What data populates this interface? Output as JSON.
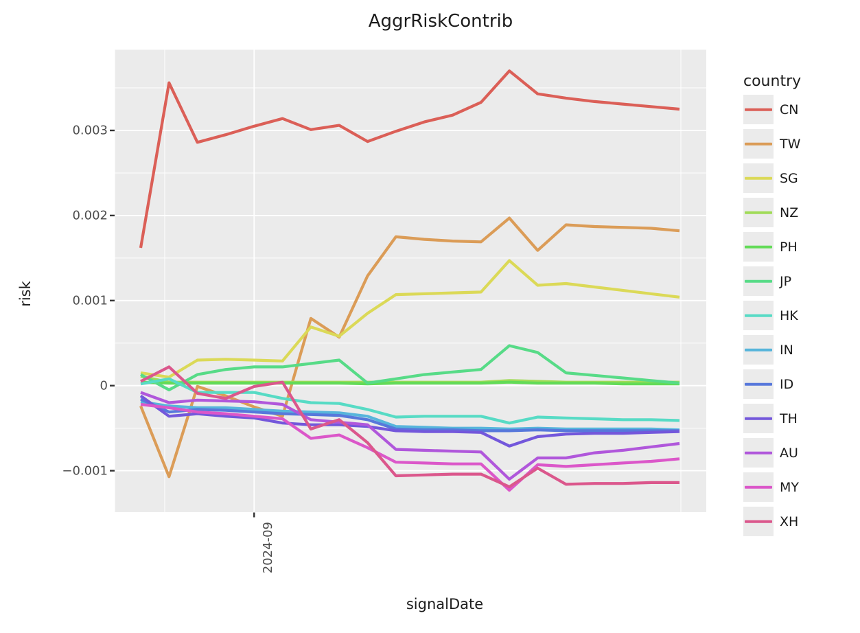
{
  "title": "AggrRiskContrib",
  "axes": {
    "x": {
      "label": "signalDate",
      "tick_labels": [
        "2024-09"
      ]
    },
    "y": {
      "label": "risk",
      "tick_labels": [
        "0.003",
        "0.002",
        "0.001",
        "0",
        "−0.001"
      ]
    }
  },
  "legend": {
    "title": "country"
  },
  "chart_data": {
    "type": "line",
    "title": "AggrRiskContrib",
    "xlabel": "signalDate",
    "ylabel": "risk",
    "background": "#ebebeb",
    "grid": true,
    "legend_position": "right",
    "legend_title": "country",
    "n_points": 20,
    "x": [
      0,
      1,
      2,
      3,
      4,
      5,
      6,
      7,
      8,
      9,
      10,
      11,
      12,
      13,
      14,
      15,
      16,
      17,
      18,
      19
    ],
    "x_visible_tick": {
      "label": "2024-09",
      "index": 4
    },
    "ylim": [
      -0.00149,
      0.00395
    ],
    "y_major_ticks": [
      0.003,
      0.002,
      0.001,
      0,
      -0.001
    ],
    "y_minor_ticks": [
      0.0035,
      0.0025,
      0.0015,
      0.0005,
      -0.0005
    ],
    "series": [
      {
        "name": "CN",
        "color": "#db5f57",
        "values": [
          0.00162,
          0.00356,
          0.00286,
          0.00295,
          0.00305,
          0.00314,
          0.00301,
          0.00306,
          0.00287,
          0.00299,
          0.0031,
          0.00318,
          0.00333,
          0.0037,
          0.00343,
          0.00338,
          0.00334,
          0.00331,
          0.00328,
          0.00325
        ]
      },
      {
        "name": "TW",
        "color": "#db9c57",
        "values": [
          -0.00024,
          -0.00107,
          -1e-05,
          -0.00012,
          -0.00025,
          -0.00036,
          0.00079,
          0.00057,
          0.00129,
          0.00175,
          0.00172,
          0.0017,
          0.00169,
          0.00197,
          0.00159,
          0.00189,
          0.00187,
          0.00186,
          0.00185,
          0.00182
        ]
      },
      {
        "name": "SG",
        "color": "#dbd957",
        "values": [
          0.00015,
          0.0001,
          0.0003,
          0.00031,
          0.0003,
          0.00029,
          0.00069,
          0.00058,
          0.00085,
          0.00107,
          0.00108,
          0.00109,
          0.0011,
          0.00147,
          0.00118,
          0.0012,
          0.00116,
          0.00112,
          0.00108,
          0.00104
        ]
      },
      {
        "name": "NZ",
        "color": "#a0db57",
        "values": [
          0.00011,
          4e-05,
          4e-05,
          4e-05,
          4e-05,
          4e-05,
          4e-05,
          4e-05,
          4e-05,
          4e-05,
          4e-05,
          4e-05,
          4e-05,
          6e-05,
          5e-05,
          4e-05,
          4e-05,
          4e-05,
          4e-05,
          4e-05
        ]
      },
      {
        "name": "PH",
        "color": "#63db57",
        "values": [
          4e-05,
          3e-05,
          3e-05,
          3e-05,
          3e-05,
          3e-05,
          3e-05,
          3e-05,
          2e-05,
          3e-05,
          3e-05,
          3e-05,
          3e-05,
          4e-05,
          3e-05,
          3e-05,
          3e-05,
          2e-05,
          2e-05,
          2e-05
        ]
      },
      {
        "name": "JP",
        "color": "#57db87",
        "values": [
          0.00013,
          -5e-05,
          0.00013,
          0.00019,
          0.00022,
          0.00022,
          0.00026,
          0.0003,
          3e-05,
          8e-05,
          0.00013,
          0.00016,
          0.00019,
          0.00047,
          0.00039,
          0.00015,
          0.00012,
          9e-05,
          6e-05,
          3e-05
        ]
      },
      {
        "name": "HK",
        "color": "#57dbc5",
        "values": [
          2e-05,
          8e-05,
          -8e-05,
          -8e-05,
          -8e-05,
          -0.00015,
          -0.0002,
          -0.00021,
          -0.00028,
          -0.00037,
          -0.00036,
          -0.00036,
          -0.00036,
          -0.00044,
          -0.00037,
          -0.00038,
          -0.00039,
          -0.0004,
          -0.0004,
          -0.00041
        ]
      },
      {
        "name": "IN",
        "color": "#57b5db",
        "values": [
          -0.00019,
          -0.00024,
          -0.00026,
          -0.00026,
          -0.00028,
          -0.0003,
          -0.00031,
          -0.00032,
          -0.00036,
          -0.00048,
          -0.00049,
          -0.0005,
          -0.0005,
          -0.00051,
          -0.0005,
          -0.00051,
          -0.00051,
          -0.00051,
          -0.00051,
          -0.00052
        ]
      },
      {
        "name": "ID",
        "color": "#5778db",
        "values": [
          -0.00016,
          -0.00031,
          -0.00028,
          -0.00029,
          -0.00031,
          -0.00033,
          -0.00034,
          -0.00035,
          -0.0004,
          -0.00051,
          -0.00052,
          -0.00052,
          -0.00053,
          -0.00053,
          -0.00052,
          -0.00053,
          -0.00053,
          -0.00053,
          -0.00053,
          -0.00053
        ]
      },
      {
        "name": "TH",
        "color": "#7357db",
        "values": [
          -0.00012,
          -0.00036,
          -0.00033,
          -0.00036,
          -0.00038,
          -0.00044,
          -0.00046,
          -0.00046,
          -0.00048,
          -0.00053,
          -0.00054,
          -0.00054,
          -0.00055,
          -0.00071,
          -0.0006,
          -0.00057,
          -0.00056,
          -0.00056,
          -0.00055,
          -0.00054
        ]
      },
      {
        "name": "AU",
        "color": "#b057db",
        "values": [
          -8e-05,
          -0.0002,
          -0.00017,
          -0.00018,
          -0.00019,
          -0.00022,
          -0.0004,
          -0.00043,
          -0.00046,
          -0.00075,
          -0.00076,
          -0.00077,
          -0.00078,
          -0.0011,
          -0.00085,
          -0.00085,
          -0.00079,
          -0.00076,
          -0.00072,
          -0.00068
        ]
      },
      {
        "name": "MY",
        "color": "#db57c9",
        "values": [
          -0.00022,
          -0.00026,
          -0.00031,
          -0.00033,
          -0.00036,
          -0.00039,
          -0.00062,
          -0.00058,
          -0.00073,
          -0.0009,
          -0.00091,
          -0.00092,
          -0.00092,
          -0.00123,
          -0.00093,
          -0.00095,
          -0.00093,
          -0.00091,
          -0.00089,
          -0.00086
        ]
      },
      {
        "name": "XH",
        "color": "#db578c",
        "values": [
          5e-05,
          0.00022,
          -9e-05,
          -0.00015,
          -1e-05,
          4e-05,
          -0.00051,
          -0.0004,
          -0.00067,
          -0.00106,
          -0.00105,
          -0.00104,
          -0.00104,
          -0.00119,
          -0.00097,
          -0.00116,
          -0.00115,
          -0.00115,
          -0.00114,
          -0.00114
        ]
      }
    ]
  }
}
